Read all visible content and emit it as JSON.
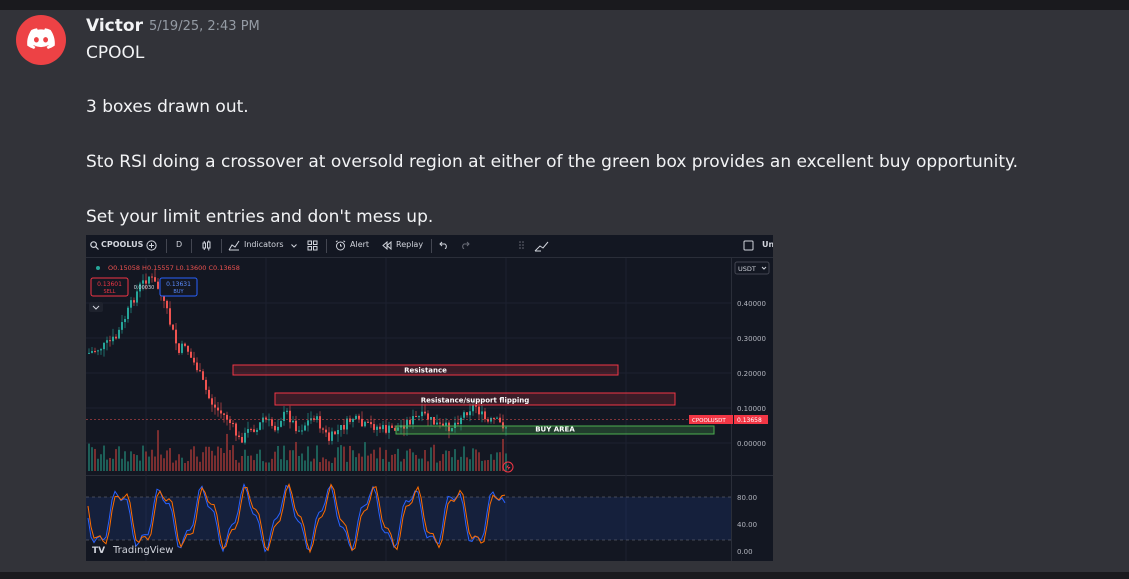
{
  "author": {
    "name": "Victor",
    "timestamp": "5/19/25, 2:43 PM"
  },
  "message": {
    "lines": [
      "CPOOL",
      "3 boxes drawn out.",
      "Sto RSI doing a crossover at oversold region at either of the green box provides an excellent buy opportunity.",
      "Set your limit entries and don't mess up."
    ]
  },
  "chart": {
    "toolbar": {
      "symbol": "CPOOLUS",
      "interval": "D",
      "indicators": "Indicators",
      "alert": "Alert",
      "replay": "Replay",
      "unit_cut": "Un"
    },
    "ohlc": {
      "o": "O0.15058",
      "h": "H0.15557",
      "l": "L0.13600",
      "c": "C0.13658"
    },
    "sell": {
      "price": "0.13601",
      "label": "SELL"
    },
    "spread": "0.00030",
    "buy": {
      "price": "0.13631",
      "label": "BUY"
    },
    "currency": "USDT",
    "price_ticks": [
      "0.40000",
      "0.30000",
      "0.20000",
      "0.10000",
      "0.00000"
    ],
    "rsi_ticks": [
      "80.00",
      "40.00",
      "0.00"
    ],
    "boxes": {
      "resistance": "Resistance",
      "flip": "Resistance/support flipping",
      "buy_area": "BUY AREA"
    },
    "symbol_tag": "CPOOLUSDT",
    "last_price": "0.13658",
    "brand": "TradingView",
    "colors": {
      "up": "#26a69a",
      "down": "#ef5350",
      "box_red": "#f23645",
      "box_green": "#4caf50"
    }
  }
}
